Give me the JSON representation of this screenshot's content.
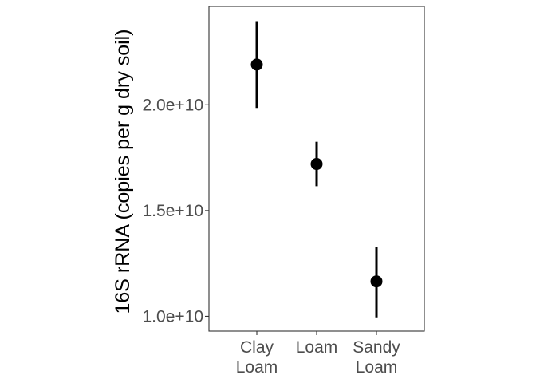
{
  "chart_data": {
    "type": "scatter",
    "title": "",
    "xlabel": "",
    "ylabel": "16S rRNA (copies per g dry soil)",
    "categories": [
      [
        "Clay",
        "Loam"
      ],
      [
        "Loam"
      ],
      [
        "Sandy",
        "Loam"
      ]
    ],
    "points": [
      {
        "category": "Clay Loam",
        "y": 21900000000,
        "ymin": 19850000000,
        "ymax": 23950000000
      },
      {
        "category": "Loam",
        "y": 17200000000,
        "ymin": 16150000000,
        "ymax": 18250000000
      },
      {
        "category": "Sandy Loam",
        "y": 11650000000,
        "ymin": 9950000000,
        "ymax": 13300000000
      }
    ],
    "yticks": [
      10000000000,
      15000000000,
      20000000000
    ],
    "ytick_labels": [
      "1.0e+10",
      "1.5e+10",
      "2.0e+10"
    ],
    "ylim": [
      9300000000,
      24650000000
    ],
    "grid": false,
    "legend": "none",
    "colors": {
      "marks": "#000000",
      "panel_border": "#333333",
      "tick_text": "#4d4d4d"
    }
  }
}
